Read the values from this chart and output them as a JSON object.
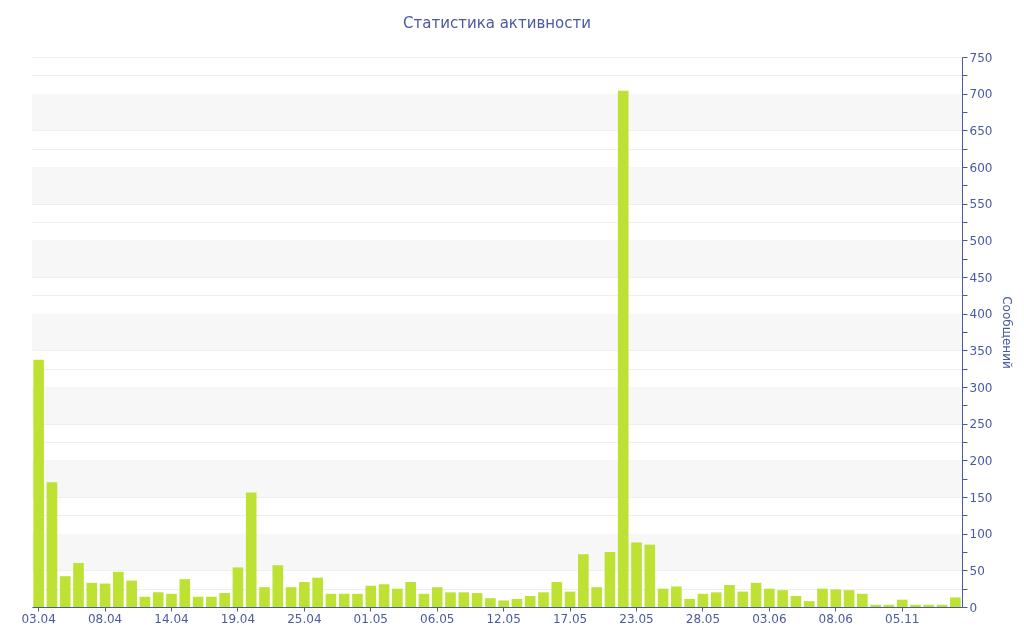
{
  "chart_data": {
    "type": "bar",
    "title": "Статистика активности",
    "ylabel": "Сообщений",
    "categories": [
      "03.04",
      null,
      null,
      null,
      null,
      "08.04",
      null,
      null,
      null,
      null,
      "14.04",
      null,
      null,
      null,
      null,
      "19.04",
      null,
      null,
      null,
      null,
      "25.04",
      null,
      null,
      null,
      null,
      "01.05",
      null,
      null,
      null,
      null,
      "06.05",
      null,
      null,
      null,
      null,
      "12.05",
      null,
      null,
      null,
      null,
      "17.05",
      null,
      null,
      null,
      null,
      "23.05",
      null,
      null,
      null,
      null,
      "28.05",
      null,
      null,
      null,
      null,
      "03.06",
      null,
      null,
      null,
      null,
      "08.06",
      null,
      null,
      null,
      null,
      "05.11",
      null,
      null,
      null,
      null
    ],
    "values": [
      337,
      170,
      42,
      60,
      33,
      32,
      48,
      36,
      14,
      20,
      18,
      38,
      14,
      14,
      19,
      54,
      156,
      27,
      57,
      27,
      34,
      40,
      18,
      18,
      18,
      29,
      31,
      25,
      34,
      18,
      27,
      20,
      20,
      19,
      12,
      9,
      11,
      15,
      20,
      34,
      21,
      72,
      27,
      75,
      704,
      88,
      85,
      25,
      28,
      11,
      18,
      20,
      30,
      21,
      33,
      25,
      23,
      15,
      8,
      25,
      24,
      23,
      18,
      3,
      3,
      10,
      3,
      3,
      3,
      13
    ],
    "color": "#bde234",
    "ylim": [
      0,
      750
    ],
    "yticks": [
      0,
      {
        "value": 25,
        "label": null
      },
      50,
      {
        "value": 75,
        "label": null
      },
      100,
      {
        "value": 125,
        "label": null
      },
      150,
      {
        "value": 175,
        "label": null
      },
      200,
      {
        "value": 225,
        "label": null
      },
      250,
      {
        "value": 275,
        "label": null
      },
      300,
      {
        "value": 325,
        "label": null
      },
      350,
      {
        "value": 375,
        "label": null
      },
      400,
      {
        "value": 425,
        "label": null
      },
      450,
      {
        "value": 475,
        "label": null
      },
      500,
      {
        "value": 525,
        "label": null
      },
      550,
      {
        "value": 575,
        "label": null
      },
      600,
      {
        "value": 625,
        "label": null
      },
      650,
      {
        "value": 675,
        "label": null
      },
      700,
      {
        "value": 725,
        "label": null
      },
      750
    ],
    "grid": true
  }
}
